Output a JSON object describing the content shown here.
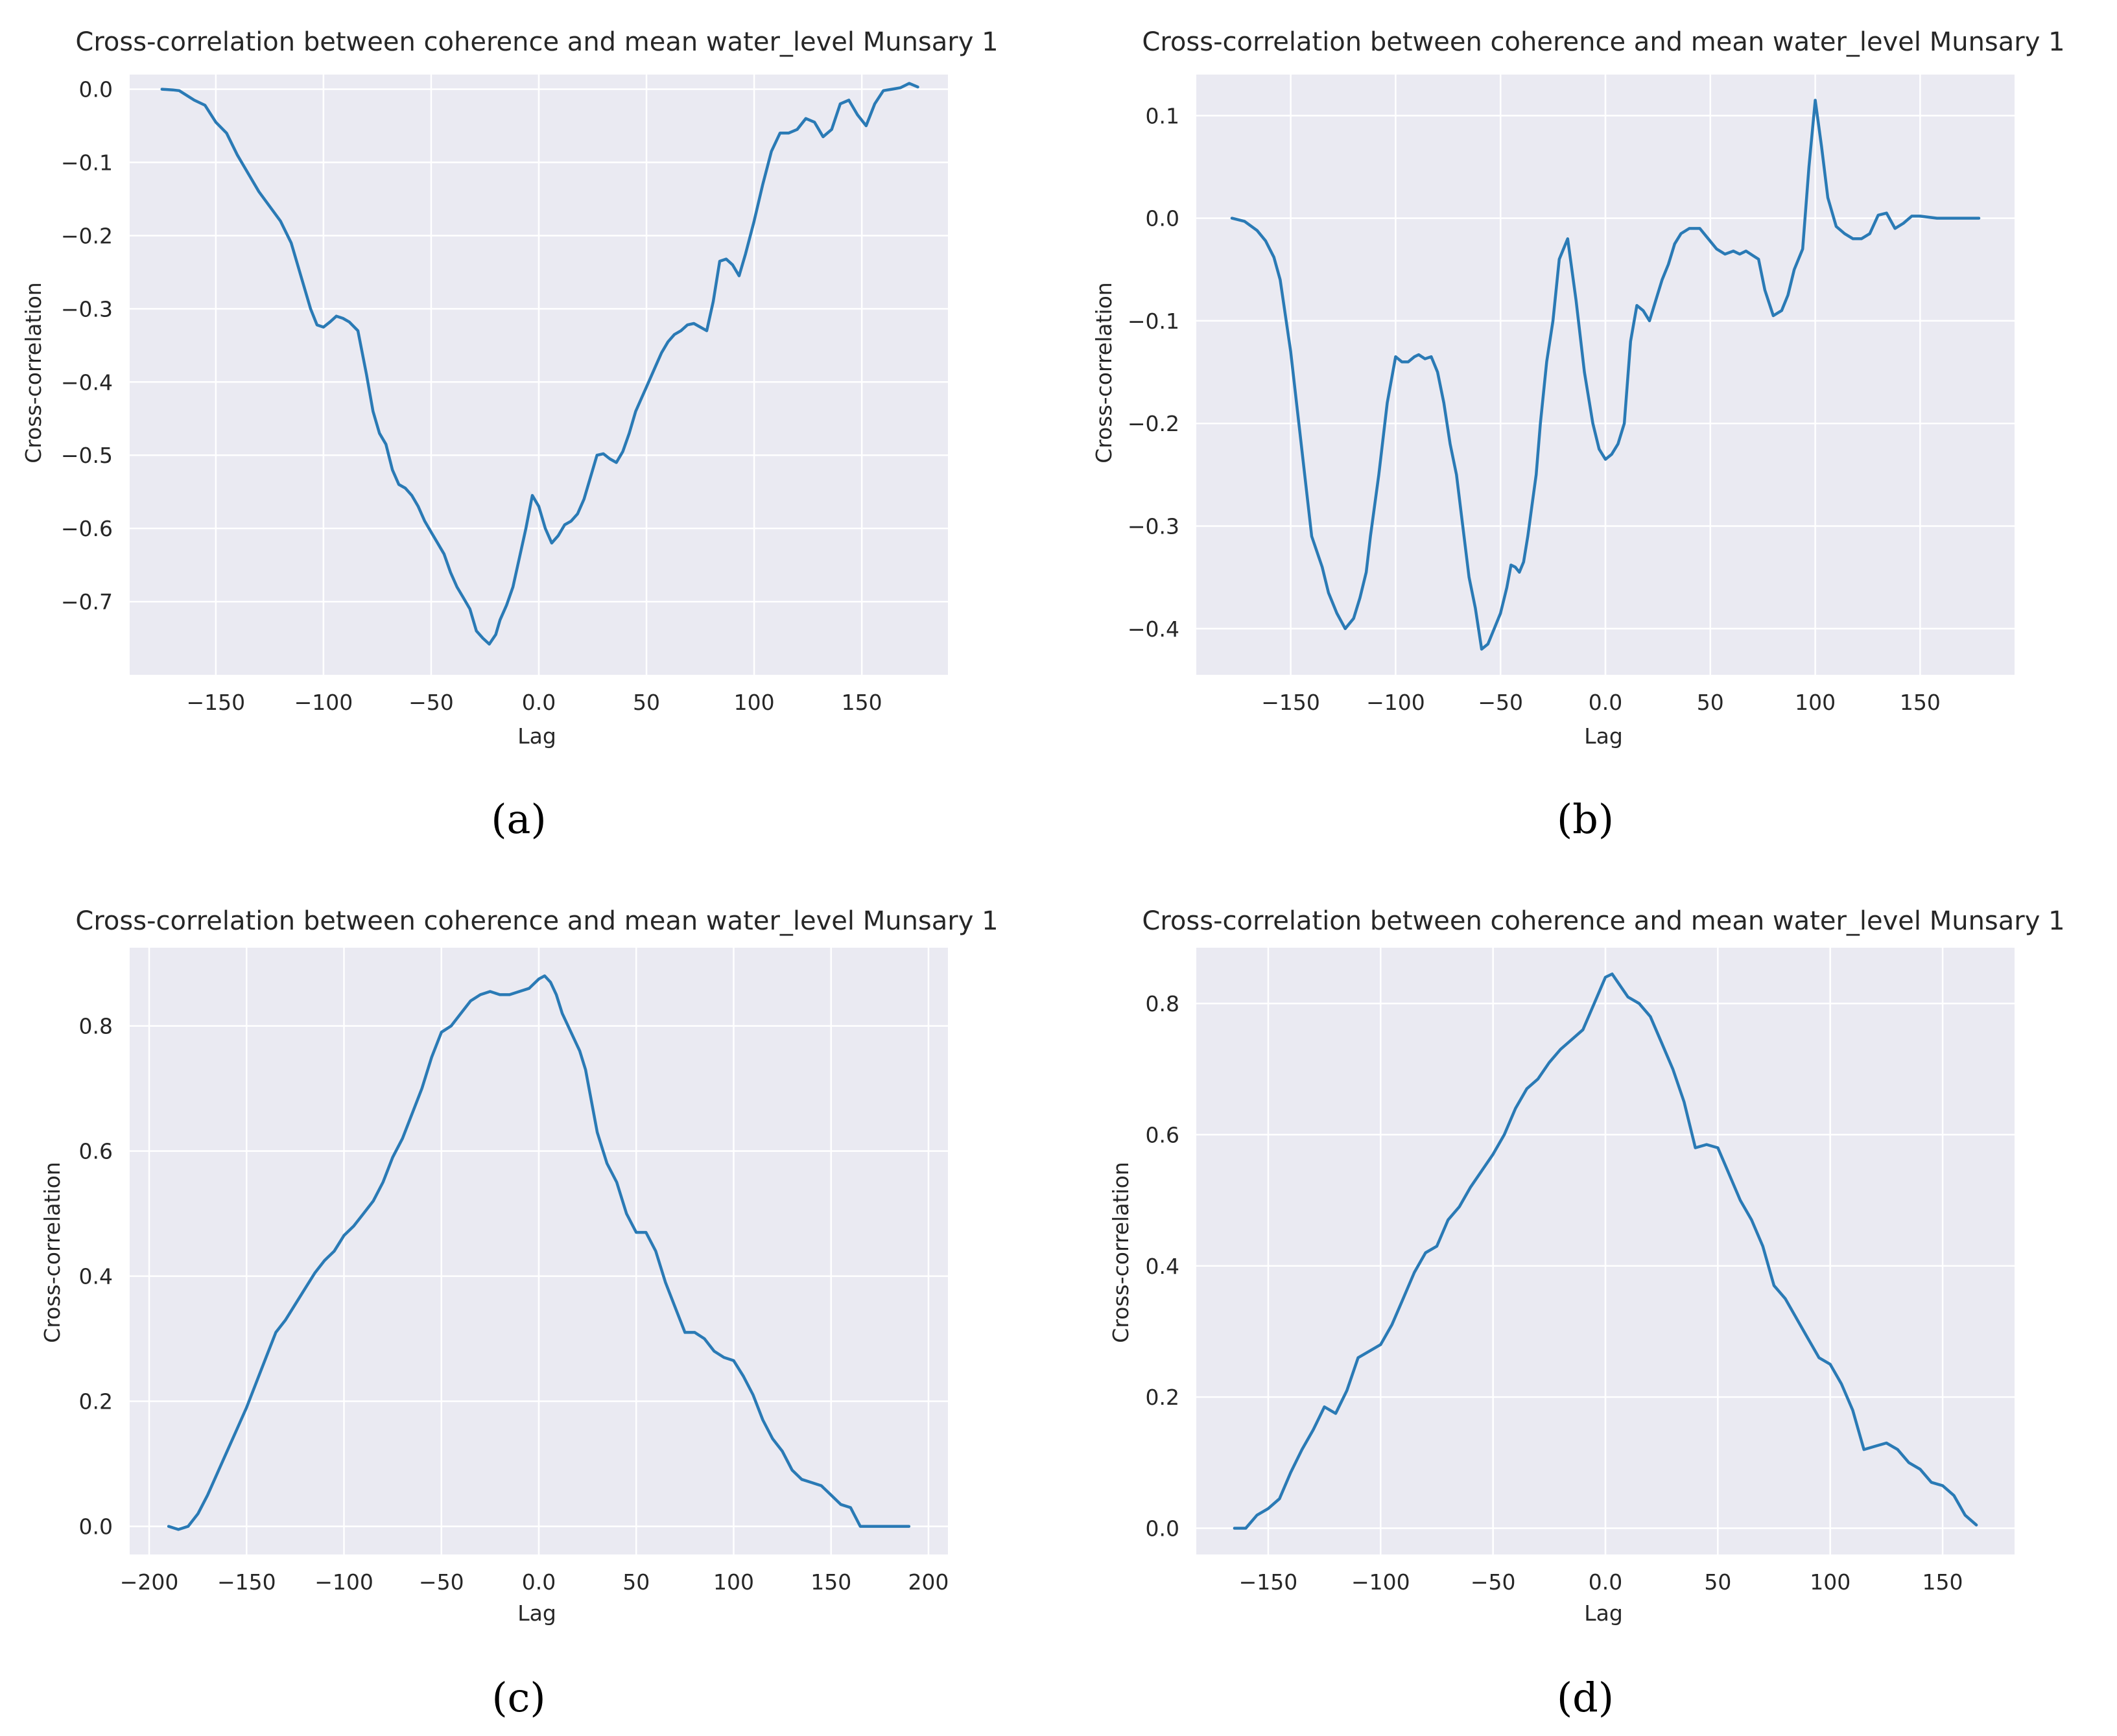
{
  "style": {
    "plot_bg": "#eaeaf2",
    "grid_color": "#ffffff",
    "line_color": "#2a7ab5"
  },
  "chart_data": [
    {
      "panel_label": "(a)",
      "type": "line",
      "title": "Cross-correlation between coherence and mean water_level Munsary 1",
      "xlabel": "Lag",
      "ylabel": "Cross-correlation",
      "xlim": [
        -190,
        190
      ],
      "ylim": [
        -0.8,
        0.02
      ],
      "xticks": [
        -150,
        -100,
        -50,
        0,
        50,
        100,
        150
      ],
      "yticks": [
        0.0,
        -0.1,
        -0.2,
        -0.3,
        -0.4,
        -0.5,
        -0.6,
        -0.7
      ],
      "grid": true,
      "series": [
        {
          "x": [
            -175,
            -170,
            -167,
            -160,
            -155,
            -150,
            -145,
            -140,
            -135,
            -130,
            -125,
            -120,
            -115,
            -110,
            -106,
            -103,
            -100,
            -97,
            -94,
            -91,
            -88,
            -84,
            -80,
            -77,
            -74,
            -71,
            -68,
            -65,
            -62,
            -59,
            -56,
            -53,
            -50,
            -47,
            -44,
            -41,
            -38,
            -35,
            -32,
            -29,
            -26,
            -23,
            -20,
            -18,
            -15,
            -12,
            -9,
            -6,
            -3,
            0,
            3,
            6,
            9,
            12,
            15,
            18,
            21,
            24,
            27,
            30,
            33,
            36,
            39,
            42,
            45,
            48,
            51,
            54,
            57,
            60,
            63,
            66,
            69,
            72,
            75,
            78,
            81,
            84,
            87,
            90,
            93,
            96,
            100,
            104,
            108,
            112,
            116,
            120,
            124,
            128,
            132,
            136,
            140,
            144,
            148,
            152,
            156,
            160,
            164,
            168,
            172,
            176
          ],
          "y": [
            0.0,
            -0.001,
            -0.002,
            -0.015,
            -0.022,
            -0.045,
            -0.06,
            -0.09,
            -0.115,
            -0.14,
            -0.16,
            -0.18,
            -0.21,
            -0.26,
            -0.3,
            -0.322,
            -0.325,
            -0.318,
            -0.31,
            -0.313,
            -0.318,
            -0.33,
            -0.39,
            -0.44,
            -0.47,
            -0.485,
            -0.52,
            -0.54,
            -0.545,
            -0.555,
            -0.57,
            -0.59,
            -0.605,
            -0.62,
            -0.635,
            -0.66,
            -0.68,
            -0.695,
            -0.71,
            -0.74,
            -0.75,
            -0.758,
            -0.745,
            -0.725,
            -0.705,
            -0.68,
            -0.64,
            -0.6,
            -0.555,
            -0.57,
            -0.6,
            -0.62,
            -0.61,
            -0.595,
            -0.59,
            -0.58,
            -0.56,
            -0.53,
            -0.5,
            -0.498,
            -0.505,
            -0.51,
            -0.495,
            -0.47,
            -0.44,
            -0.42,
            -0.4,
            -0.38,
            -0.36,
            -0.345,
            -0.335,
            -0.33,
            -0.322,
            -0.32,
            -0.325,
            -0.33,
            -0.29,
            -0.235,
            -0.232,
            -0.24,
            -0.255,
            -0.225,
            -0.18,
            -0.13,
            -0.085,
            -0.06,
            -0.06,
            -0.055,
            -0.04,
            -0.045,
            -0.065,
            -0.055,
            -0.02,
            -0.015,
            -0.035,
            -0.05,
            -0.02,
            -0.002,
            0.0,
            0.002,
            0.008,
            0.003
          ]
        }
      ]
    },
    {
      "panel_label": "(b)",
      "type": "line",
      "title": "Cross-correlation between coherence and mean water_level Munsary 1",
      "xlabel": "Lag",
      "ylabel": "Cross-correlation",
      "xlim": [
        -195,
        195
      ],
      "ylim": [
        -0.445,
        0.14
      ],
      "xticks": [
        -150,
        -100,
        -50,
        0,
        50,
        100,
        150
      ],
      "yticks": [
        0.1,
        0.0,
        -0.1,
        -0.2,
        -0.3,
        -0.4
      ],
      "grid": true,
      "series": [
        {
          "x": [
            -178,
            -172,
            -166,
            -162,
            -158,
            -155,
            -150,
            -145,
            -140,
            -135,
            -132,
            -128,
            -124,
            -120,
            -117,
            -114,
            -112,
            -108,
            -104,
            -100,
            -97,
            -94,
            -91,
            -89,
            -86,
            -83,
            -80,
            -77,
            -74,
            -71,
            -68,
            -65,
            -62,
            -59,
            -56,
            -53,
            -50,
            -47,
            -45,
            -43,
            -41,
            -39,
            -37,
            -35,
            -33,
            -31,
            -28,
            -25,
            -22,
            -18,
            -14,
            -10,
            -6,
            -3,
            0,
            3,
            6,
            9,
            12,
            15,
            18,
            21,
            24,
            27,
            30,
            33,
            36,
            40,
            45,
            49,
            53,
            57,
            61,
            64,
            67,
            70,
            73,
            76,
            80,
            84,
            87,
            90,
            94,
            97,
            100,
            103,
            106,
            110,
            114,
            118,
            122,
            126,
            130,
            134,
            138,
            142,
            146,
            150,
            154,
            158,
            162,
            165,
            168,
            172,
            175,
            178
          ],
          "y": [
            0.0,
            -0.003,
            -0.012,
            -0.022,
            -0.038,
            -0.06,
            -0.13,
            -0.22,
            -0.31,
            -0.34,
            -0.365,
            -0.385,
            -0.4,
            -0.39,
            -0.37,
            -0.345,
            -0.31,
            -0.25,
            -0.18,
            -0.135,
            -0.14,
            -0.14,
            -0.135,
            -0.133,
            -0.137,
            -0.135,
            -0.15,
            -0.18,
            -0.22,
            -0.25,
            -0.3,
            -0.35,
            -0.38,
            -0.42,
            -0.415,
            -0.4,
            -0.385,
            -0.36,
            -0.338,
            -0.34,
            -0.345,
            -0.335,
            -0.31,
            -0.28,
            -0.25,
            -0.2,
            -0.14,
            -0.1,
            -0.04,
            -0.02,
            -0.08,
            -0.15,
            -0.2,
            -0.225,
            -0.235,
            -0.23,
            -0.22,
            -0.2,
            -0.12,
            -0.085,
            -0.09,
            -0.1,
            -0.08,
            -0.06,
            -0.045,
            -0.025,
            -0.015,
            -0.01,
            -0.01,
            -0.02,
            -0.03,
            -0.035,
            -0.032,
            -0.035,
            -0.032,
            -0.036,
            -0.04,
            -0.07,
            -0.095,
            -0.09,
            -0.075,
            -0.05,
            -0.03,
            0.05,
            0.115,
            0.07,
            0.02,
            -0.008,
            -0.015,
            -0.02,
            -0.02,
            -0.015,
            0.003,
            0.005,
            -0.01,
            -0.005,
            0.002,
            0.002,
            0.001,
            0.0,
            0.0,
            0.0,
            0.0,
            0.0,
            0.0,
            0.0
          ]
        }
      ]
    },
    {
      "panel_label": "(c)",
      "type": "line",
      "title": "Cross-correlation between coherence and mean water_level Munsary 1",
      "xlabel": "Lag",
      "ylabel": "Cross-correlation",
      "xlim": [
        -210,
        210
      ],
      "ylim": [
        -0.045,
        0.925
      ],
      "xticks": [
        -200,
        -150,
        -100,
        -50,
        0,
        50,
        100,
        150,
        200
      ],
      "yticks": [
        0.8,
        0.6,
        0.4,
        0.2,
        0.0
      ],
      "grid": true,
      "series": [
        {
          "x": [
            -190,
            -185,
            -180,
            -175,
            -170,
            -165,
            -160,
            -155,
            -150,
            -145,
            -140,
            -135,
            -130,
            -125,
            -120,
            -115,
            -110,
            -105,
            -100,
            -95,
            -90,
            -85,
            -80,
            -75,
            -70,
            -65,
            -60,
            -55,
            -50,
            -45,
            -40,
            -35,
            -30,
            -25,
            -20,
            -15,
            -10,
            -5,
            0,
            3,
            6,
            9,
            12,
            15,
            18,
            21,
            24,
            27,
            30,
            35,
            40,
            45,
            50,
            55,
            60,
            65,
            70,
            75,
            80,
            85,
            90,
            95,
            100,
            105,
            110,
            115,
            120,
            125,
            130,
            135,
            140,
            145,
            150,
            155,
            160,
            165,
            170,
            175,
            180,
            185,
            190
          ],
          "y": [
            0.0,
            -0.005,
            0.0,
            0.02,
            0.05,
            0.085,
            0.12,
            0.155,
            0.19,
            0.23,
            0.27,
            0.31,
            0.33,
            0.355,
            0.38,
            0.405,
            0.425,
            0.44,
            0.465,
            0.48,
            0.5,
            0.52,
            0.55,
            0.59,
            0.62,
            0.66,
            0.7,
            0.75,
            0.79,
            0.8,
            0.82,
            0.84,
            0.85,
            0.855,
            0.85,
            0.85,
            0.855,
            0.86,
            0.875,
            0.88,
            0.87,
            0.85,
            0.82,
            0.8,
            0.78,
            0.76,
            0.73,
            0.68,
            0.63,
            0.58,
            0.55,
            0.5,
            0.47,
            0.47,
            0.44,
            0.39,
            0.35,
            0.31,
            0.31,
            0.3,
            0.28,
            0.27,
            0.265,
            0.24,
            0.21,
            0.17,
            0.14,
            0.12,
            0.09,
            0.075,
            0.07,
            0.065,
            0.05,
            0.035,
            0.03,
            0.0,
            0.0,
            0.0,
            0.0,
            0.0,
            0.0
          ]
        }
      ]
    },
    {
      "panel_label": "(d)",
      "type": "line",
      "title": "Cross-correlation between coherence and mean water_level Munsary 1",
      "xlabel": "Lag",
      "ylabel": "Cross-correlation",
      "xlim": [
        -182,
        182
      ],
      "ylim": [
        -0.04,
        0.885
      ],
      "xticks": [
        -150,
        -100,
        -50,
        0,
        50,
        100,
        150
      ],
      "yticks": [
        0.8,
        0.6,
        0.4,
        0.2,
        0.0
      ],
      "grid": true,
      "series": [
        {
          "x": [
            -165,
            -160,
            -155,
            -150,
            -145,
            -140,
            -135,
            -130,
            -125,
            -120,
            -115,
            -110,
            -105,
            -100,
            -95,
            -90,
            -85,
            -80,
            -75,
            -70,
            -65,
            -60,
            -55,
            -50,
            -45,
            -40,
            -35,
            -30,
            -25,
            -20,
            -15,
            -10,
            -5,
            0,
            3,
            6,
            10,
            15,
            20,
            25,
            30,
            35,
            40,
            45,
            50,
            55,
            60,
            65,
            70,
            75,
            80,
            85,
            90,
            95,
            100,
            105,
            110,
            115,
            120,
            125,
            130,
            135,
            140,
            145,
            150,
            155,
            160,
            165
          ],
          "y": [
            0.0,
            0.0,
            0.02,
            0.03,
            0.045,
            0.085,
            0.12,
            0.15,
            0.185,
            0.175,
            0.21,
            0.26,
            0.27,
            0.28,
            0.31,
            0.35,
            0.39,
            0.42,
            0.43,
            0.47,
            0.49,
            0.52,
            0.545,
            0.57,
            0.6,
            0.64,
            0.67,
            0.685,
            0.71,
            0.73,
            0.745,
            0.76,
            0.8,
            0.84,
            0.845,
            0.83,
            0.81,
            0.8,
            0.78,
            0.74,
            0.7,
            0.65,
            0.58,
            0.585,
            0.58,
            0.54,
            0.5,
            0.47,
            0.43,
            0.37,
            0.35,
            0.32,
            0.29,
            0.26,
            0.25,
            0.22,
            0.18,
            0.12,
            0.125,
            0.13,
            0.12,
            0.1,
            0.09,
            0.07,
            0.065,
            0.05,
            0.02,
            0.005
          ]
        }
      ]
    }
  ]
}
